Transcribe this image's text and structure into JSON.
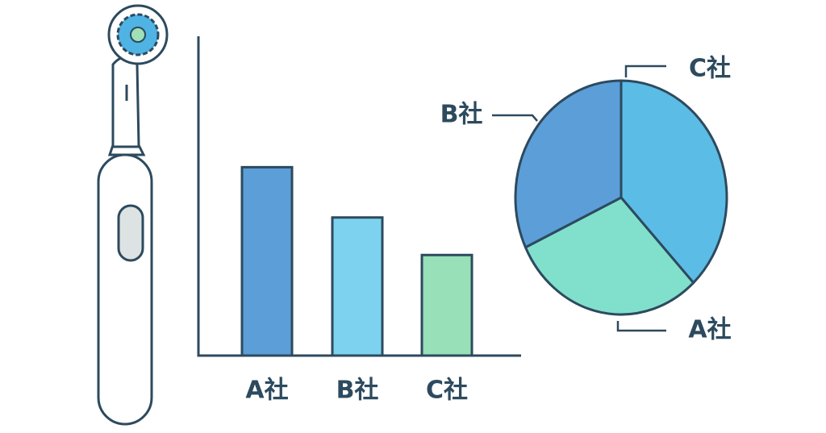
{
  "chart_data": [
    {
      "type": "bar",
      "categories": [
        "A社",
        "B社",
        "C社"
      ],
      "values": [
        236,
        173,
        126
      ],
      "colors": [
        "#5b9ed8",
        "#7dd3ef",
        "#98e0b8"
      ],
      "ylim": [
        0,
        400
      ]
    },
    {
      "type": "pie",
      "categories": [
        "C社",
        "A社",
        "B社"
      ],
      "values": [
        38,
        30,
        32
      ],
      "colors": [
        "#5bbce6",
        "#80e0cc",
        "#5b9ed8"
      ]
    }
  ]
}
